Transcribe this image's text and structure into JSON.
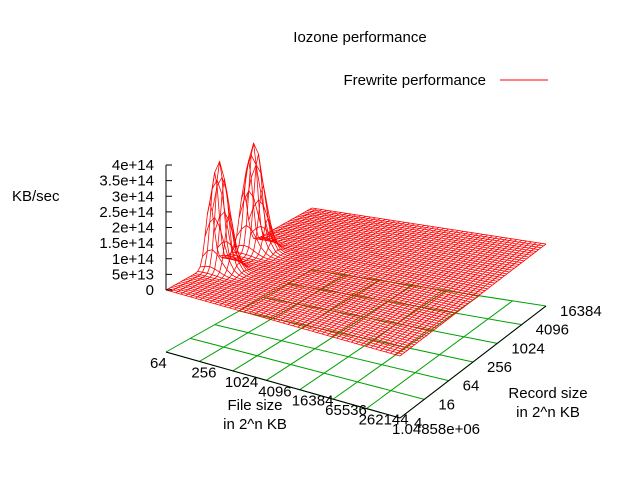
{
  "chart_data": {
    "type": "surface3d",
    "title": "Iozone performance",
    "zlabel": "KB/sec",
    "xlabel_line1": "File size",
    "xlabel_line2": "in 2^n KB",
    "ylabel_line1": "Record size",
    "ylabel_line2": "in 2^n KB",
    "legend": {
      "entries": [
        {
          "name": "Frewrite performance",
          "color": "#ff0000"
        }
      ]
    },
    "x_ticks": [
      "64",
      "256",
      "1024",
      "4096",
      "16384",
      "65536",
      "262144",
      "1.04858e+06"
    ],
    "y_ticks": [
      "4",
      "16",
      "64",
      "256",
      "1024",
      "4096",
      "16384"
    ],
    "z_ticks": [
      "0",
      "5e+13",
      "1e+14",
      "1.5e+14",
      "2e+14",
      "2.5e+14",
      "3e+14",
      "3.5e+14",
      "4e+14"
    ],
    "zlim": [
      0,
      400000000000000
    ],
    "grid": true,
    "grid_color": "#00a000",
    "surface_color": "#ff0000",
    "surface_peaks": [
      {
        "file_size_kb": 64,
        "record_size_kb": 16,
        "value": 340000000000000
      },
      {
        "file_size_kb": 64,
        "record_size_kb": 64,
        "value": 340000000000000
      }
    ],
    "surface_baseline": 0
  }
}
